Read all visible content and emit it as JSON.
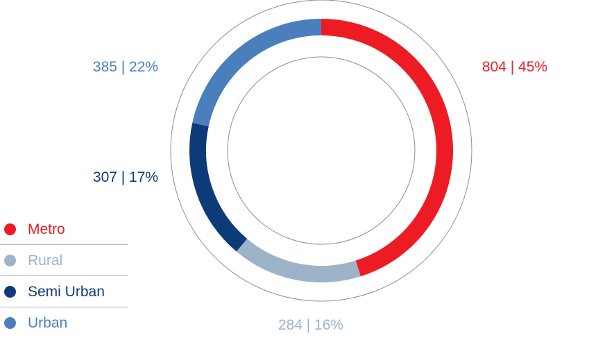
{
  "chart_data": {
    "type": "pie",
    "variant": "donut",
    "slices": [
      {
        "name": "Metro",
        "value": 804,
        "percent_label": "45%",
        "color": "#ed1c24"
      },
      {
        "name": "Rural",
        "value": 284,
        "percent_label": "16%",
        "color": "#9db3c8"
      },
      {
        "name": "Semi Urban",
        "value": 307,
        "percent_label": "17%",
        "color": "#0c3b78"
      },
      {
        "name": "Urban",
        "value": 385,
        "percent_label": "22%",
        "color": "#4a7fbb"
      }
    ],
    "data_labels": [
      "804 | 45%",
      "284 | 16%",
      "307 | 17%",
      "385 | 22%"
    ],
    "legend": [
      "Metro",
      "Rural",
      "Semi Urban",
      "Urban"
    ],
    "legend_position": "bottom-left",
    "start_angle": "top, clockwise",
    "ring_outline_color": "#7f8fa4"
  }
}
